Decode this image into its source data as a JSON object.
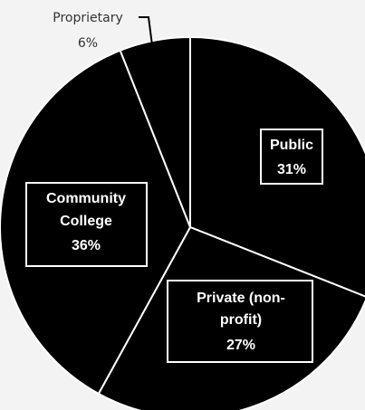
{
  "chart_data": {
    "type": "pie",
    "title": "",
    "slices": [
      {
        "label": "Public",
        "lines": [
          "Public"
        ],
        "value": 31,
        "display": "31%"
      },
      {
        "label": "Private (non-profit)",
        "lines": [
          "Private (non-",
          "profit)"
        ],
        "value": 27,
        "display": "27%"
      },
      {
        "label": "Community College",
        "lines": [
          "Community",
          "College"
        ],
        "value": 36,
        "display": "36%"
      },
      {
        "label": "Proprietary",
        "lines": [
          "Proprietary"
        ],
        "value": 6,
        "display": "6%"
      }
    ],
    "legend": "none",
    "colors": {
      "background": "#f3f3f3",
      "slice_fill": "#000000",
      "slice_edge": "#ffffff",
      "label_box_border": "#ffffff",
      "outside_text": "#333333",
      "inside_text": "#ffffff"
    }
  }
}
